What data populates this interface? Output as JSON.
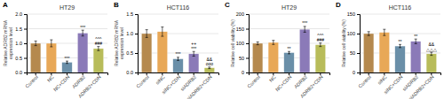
{
  "chart_data": [
    {
      "type": "bar",
      "label": "A",
      "title": "HT29",
      "ylabel": "Relative ADRB2 mRNA\nexpression level",
      "ylim": [
        0,
        2.0
      ],
      "yticks": [
        {
          "value": 0,
          "label": "0.0"
        },
        0.5,
        {
          "value": 1,
          "label": "1.0"
        },
        1.5,
        {
          "value": 2,
          "label": "2.0"
        }
      ],
      "categories": [
        "Control",
        "NC",
        "NC+CDN",
        "ADRB2",
        "ADRB2+CDN"
      ],
      "values": [
        1.0,
        1.0,
        0.35,
        1.35,
        0.82
      ],
      "errors": [
        0.08,
        0.12,
        0.04,
        0.1,
        0.07
      ],
      "colors": [
        "#b5894e",
        "#e8a857",
        "#6a8fa8",
        "#8b7ab8",
        "#b8bc5a"
      ],
      "annotations": [
        null,
        null,
        [
          "***"
        ],
        [
          "***"
        ],
        [
          "###",
          "^^^"
        ]
      ],
      "grid": true
    },
    {
      "type": "bar",
      "label": "B",
      "title": "HCT116",
      "ylabel": "Relative ADRB2 mRNA\nexpression level",
      "ylim": [
        0,
        1.5
      ],
      "yticks": [
        {
          "value": 0,
          "label": "0.0"
        },
        0.5,
        {
          "value": 1,
          "label": "1.0"
        },
        1.5
      ],
      "categories": [
        "Control",
        "siNC",
        "siNC+CDN",
        "siADRB2",
        "siADRB2+CDN"
      ],
      "values": [
        1.0,
        1.05,
        0.35,
        0.48,
        0.12
      ],
      "errors": [
        0.1,
        0.12,
        0.04,
        0.06,
        0.02
      ],
      "colors": [
        "#b5894e",
        "#e8a857",
        "#6a8fa8",
        "#8b7ab8",
        "#b8bc5a"
      ],
      "annotations": [
        null,
        null,
        [
          "***"
        ],
        [
          "***",
          "++"
        ],
        [
          "ooo",
          "&&"
        ]
      ],
      "grid": true
    },
    {
      "type": "bar",
      "label": "C",
      "title": "HT29",
      "ylabel": "Relative cell viability (%)",
      "ylim": [
        0,
        200
      ],
      "yticks": [
        0,
        50,
        100,
        150,
        200
      ],
      "categories": [
        "Control",
        "NC",
        "NC+CDN",
        "ADRB2",
        "ADRB2+CDN"
      ],
      "values": [
        100,
        103,
        68,
        148,
        95
      ],
      "errors": [
        5,
        7,
        4,
        10,
        6
      ],
      "colors": [
        "#b5894e",
        "#e8a857",
        "#6a8fa8",
        "#8b7ab8",
        "#b8bc5a"
      ],
      "annotations": [
        null,
        null,
        [
          "**"
        ],
        [
          "***"
        ],
        [
          "###",
          "^^^"
        ]
      ],
      "grid": true
    },
    {
      "type": "bar",
      "label": "D",
      "title": "HCT116",
      "ylabel": "Relative cell viability (%)",
      "ylim": [
        0,
        150
      ],
      "yticks": [
        0,
        50,
        100,
        150
      ],
      "categories": [
        "Control",
        "siNC",
        "siNC+CDN",
        "siADRB2",
        "siADRB2+CDN"
      ],
      "values": [
        100,
        103,
        68,
        80,
        48
      ],
      "errors": [
        5,
        8,
        4,
        6,
        4
      ],
      "colors": [
        "#b5894e",
        "#e8a857",
        "#6a8fa8",
        "#8b7ab8",
        "#b8bc5a"
      ],
      "annotations": [
        null,
        null,
        [
          "**"
        ],
        [
          "**"
        ],
        [
          "△△△",
          "&&"
        ]
      ],
      "grid": true
    }
  ]
}
